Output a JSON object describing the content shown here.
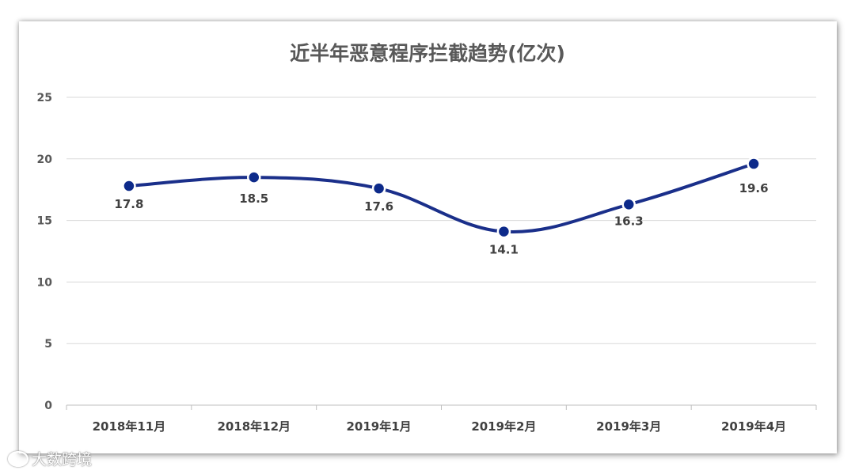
{
  "chart_data": {
    "type": "line",
    "title": "近半年恶意程序拦截趋势(亿次)",
    "categories": [
      "2018年11月",
      "2018年12月",
      "2019年1月",
      "2019年2月",
      "2019年3月",
      "2019年4月"
    ],
    "values": [
      17.8,
      18.5,
      17.6,
      14.1,
      16.3,
      19.6
    ],
    "data_labels": [
      "17.8",
      "18.5",
      "17.6",
      "14.1",
      "16.3",
      "19.6"
    ],
    "yticks": [
      "0",
      "5",
      "10",
      "15",
      "20",
      "25"
    ],
    "ylim": [
      0,
      25
    ],
    "grid": true,
    "line_color": "#1a2f8a",
    "marker_color": "#0d2a8a",
    "smooth": true
  },
  "watermark": {
    "text": "大数跨境",
    "icon": "logo-icon"
  }
}
